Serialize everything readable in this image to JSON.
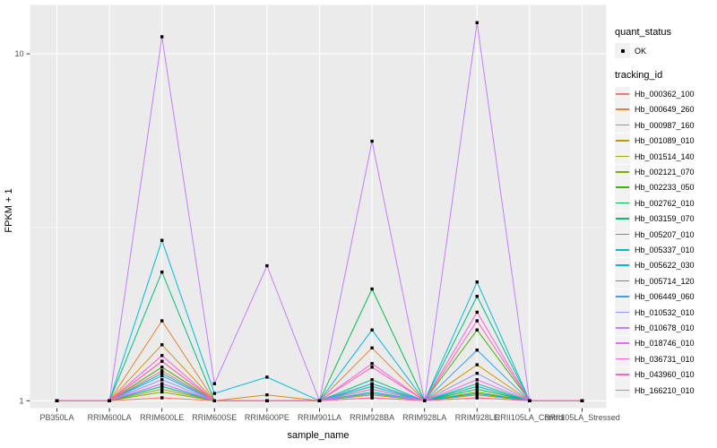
{
  "chart_data": {
    "type": "line",
    "title": "",
    "xlabel": "sample_name",
    "ylabel": "FPKM + 1",
    "y_scale": "log10",
    "yticks": [
      1,
      10
    ],
    "ylim": [
      0.95,
      13.8
    ],
    "grid": true,
    "legend_position": "right",
    "marker": {
      "shape": "square",
      "color": "#000000",
      "meaning": "quant_status OK"
    },
    "categories": [
      "PB350LA",
      "RRIM600LA",
      "RRIM600LE",
      "RRIM600SE",
      "RRIM600PE",
      "RRIM901LA",
      "RRIM928BA",
      "RRIM928LA",
      "RRIM928LE",
      "RRII105LA_Control",
      "RRII105LA_Stressed"
    ],
    "series": [
      {
        "name": "Hb_000362_100",
        "color": "#F8766D",
        "values": [
          1,
          1,
          1.02,
          1,
          1,
          1,
          1.02,
          1,
          1.02,
          1,
          1
        ]
      },
      {
        "name": "Hb_000649_260",
        "color": "#EA8331",
        "values": [
          1,
          1,
          1.7,
          1,
          1,
          1,
          1.42,
          1,
          1.1,
          1,
          1
        ]
      },
      {
        "name": "Hb_000987_160",
        "color": "#D89000",
        "values": [
          1,
          1,
          1.45,
          1,
          1.04,
          1,
          1.05,
          1,
          1.27,
          1,
          1
        ]
      },
      {
        "name": "Hb_001089_010",
        "color": "#C09B00",
        "values": [
          1,
          1,
          1.3,
          1,
          1,
          1,
          1.1,
          1,
          1.05,
          1,
          1
        ]
      },
      {
        "name": "Hb_001514_140",
        "color": "#A3A500",
        "values": [
          1,
          1,
          1.08,
          1,
          1,
          1,
          1.04,
          1,
          1.04,
          1,
          1
        ]
      },
      {
        "name": "Hb_002121_070",
        "color": "#7CAE00",
        "values": [
          1,
          1,
          1.06,
          1,
          1,
          1,
          1.08,
          1,
          1.06,
          1,
          1
        ]
      },
      {
        "name": "Hb_002233_050",
        "color": "#39B600",
        "values": [
          1,
          1,
          1.25,
          1,
          1,
          1,
          1.12,
          1,
          1.6,
          1,
          1
        ]
      },
      {
        "name": "Hb_002762_010",
        "color": "#00BB4E",
        "values": [
          1,
          1,
          1.1,
          1,
          1,
          1,
          2.1,
          1,
          1.08,
          1,
          1
        ]
      },
      {
        "name": "Hb_003159_070",
        "color": "#00BF7D",
        "values": [
          1,
          1,
          2.35,
          1,
          1,
          1,
          1.15,
          1,
          2.0,
          1,
          1
        ]
      },
      {
        "name": "Hb_005207_010",
        "color": "#00C1A3",
        "values": [
          1,
          1,
          1.1,
          1,
          1,
          1,
          1.06,
          1,
          1.12,
          1,
          1
        ]
      },
      {
        "name": "Hb_005337_010",
        "color": "#00BFC4",
        "values": [
          1,
          1,
          1.2,
          1,
          1,
          1,
          1.1,
          1,
          1.1,
          1,
          1
        ]
      },
      {
        "name": "Hb_005622_030",
        "color": "#00BAE0",
        "values": [
          1,
          1,
          2.9,
          1.05,
          1.17,
          1,
          1.6,
          1,
          2.2,
          1,
          1
        ]
      },
      {
        "name": "Hb_005714_120",
        "color": "#00B0F6",
        "values": [
          1,
          1,
          1.12,
          1,
          1,
          1,
          1.05,
          1,
          1.05,
          1,
          1
        ]
      },
      {
        "name": "Hb_006449_060",
        "color": "#35A2FF",
        "values": [
          1,
          1,
          1.18,
          1,
          1,
          1,
          1.12,
          1,
          1.4,
          1,
          1
        ]
      },
      {
        "name": "Hb_010532_010",
        "color": "#9590FF",
        "values": [
          1,
          1,
          1.15,
          1,
          1,
          1,
          1.05,
          1,
          1.2,
          1,
          1
        ]
      },
      {
        "name": "Hb_010678_010",
        "color": "#C77CFF",
        "values": [
          1,
          1,
          11.2,
          1.12,
          2.45,
          1,
          5.6,
          1,
          12.3,
          1,
          1
        ]
      },
      {
        "name": "Hb_018746_010",
        "color": "#E76BF3",
        "values": [
          1,
          1,
          1.12,
          1,
          1,
          1,
          1.08,
          1,
          1.15,
          1,
          1
        ]
      },
      {
        "name": "Hb_036731_010",
        "color": "#FA62DB",
        "values": [
          1,
          1,
          1.35,
          1,
          1,
          1,
          1.28,
          1,
          1.8,
          1,
          1
        ]
      },
      {
        "name": "Hb_043960_010",
        "color": "#FF62BC",
        "values": [
          1,
          1,
          1.3,
          1,
          1,
          1,
          1.25,
          1,
          1.7,
          1,
          1
        ]
      },
      {
        "name": "Hb_166210_010",
        "color": "#FF6A98",
        "values": [
          1,
          1,
          1.22,
          1,
          1,
          1,
          1.02,
          1,
          1.02,
          1,
          1
        ]
      }
    ]
  },
  "legend": {
    "quant_status_title": "quant_status",
    "quant_status_items": [
      "OK"
    ],
    "tracking_id_title": "tracking_id"
  },
  "colors": {
    "panel_bg": "#EBEBEB",
    "grid_major": "#FFFFFF",
    "grid_minor": "#F7F7F7",
    "tick_label": "#4D4D4D",
    "tick_mark": "#333333",
    "axis_title": "#000000",
    "legend_key_bg": "#F2F2F2"
  }
}
